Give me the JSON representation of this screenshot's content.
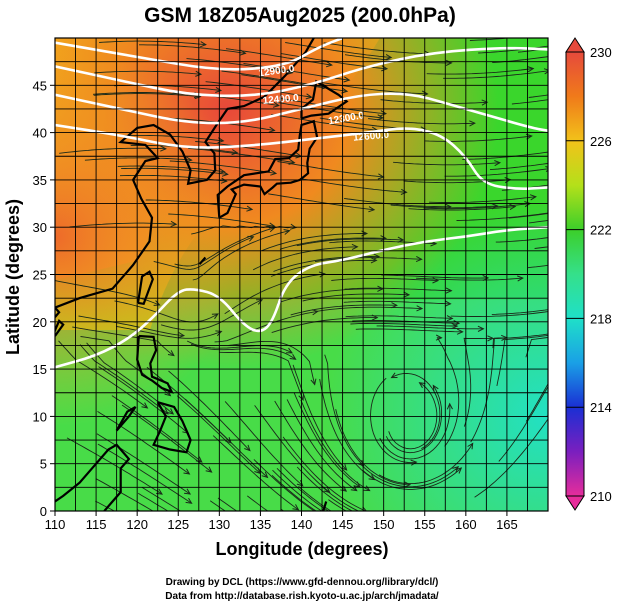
{
  "chart_data": {
    "type": "heatmap",
    "title": "GSM 18Z05Aug2025 (200.0hPa)",
    "xlabel": "Longitude (degrees)",
    "ylabel": "Latitude  (degrees)",
    "xlim": [
      110,
      170
    ],
    "ylim": [
      0,
      50
    ],
    "x_ticks": [
      "110",
      "115",
      "120",
      "125",
      "130",
      "135",
      "140",
      "145",
      "150",
      "155",
      "160",
      "165"
    ],
    "y_ticks": [
      "0",
      "5",
      "10",
      "15",
      "20",
      "25",
      "30",
      "35",
      "40",
      "45"
    ],
    "grid": true,
    "colorbar": {
      "min": 210,
      "max": 230,
      "ticks": [
        "210",
        "214",
        "218",
        "222",
        "226",
        "230"
      ],
      "colors": [
        "#e62d9b",
        "#7a1fbf",
        "#1a2fd4",
        "#1aa0e6",
        "#1fe0c8",
        "#35e08a",
        "#3ccf2a",
        "#b4e01a",
        "#f2c21a",
        "#f07a1a",
        "#e64a3c"
      ]
    },
    "contour_labels": [
      "12900.0",
      "12400.0",
      "12300.0",
      "12600.0"
    ],
    "credits": [
      "Drawing by DCL (https://www.gfd-dennou.org/library/dcl/)",
      "Data from http://database.rish.kyoto-u.ac.jp/arch/jmadata/"
    ]
  }
}
